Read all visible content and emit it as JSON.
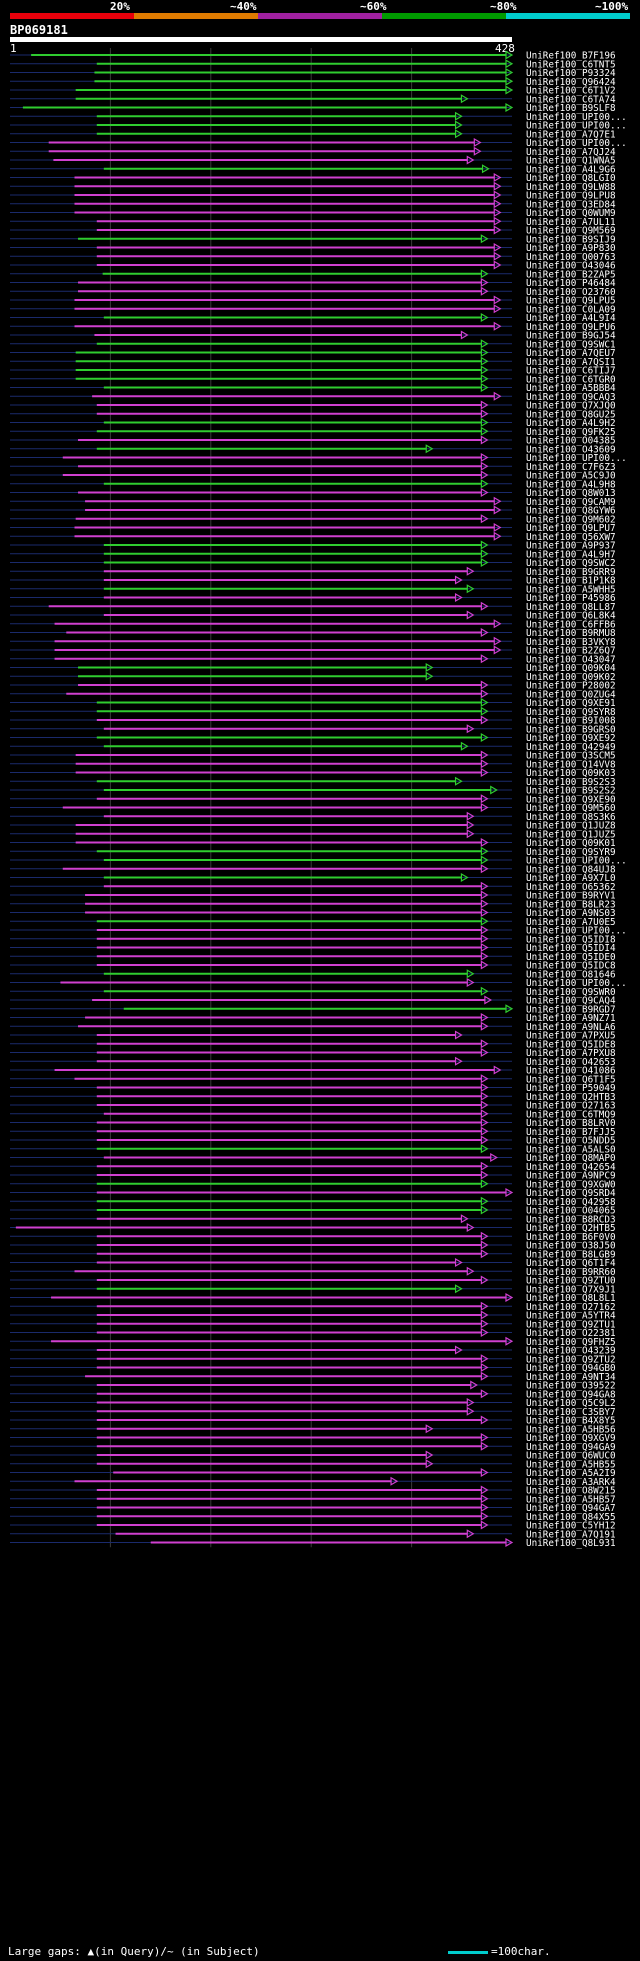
{
  "scale": {
    "labels": [
      "20%",
      "~40%",
      "~60%",
      "~80%",
      "~100%"
    ],
    "colors": [
      "#e8000b",
      "#e07b00",
      "#a020a0",
      "#009a00",
      "#00cccc"
    ]
  },
  "query": {
    "id": "BP069181",
    "start": "1",
    "end": "428",
    "length": 428
  },
  "colors": {
    "green": "#2fcc2f",
    "magenta": "#d040d0",
    "bg_line": "#1a2a6c",
    "gridline": "#3a3a3a"
  },
  "hits": [
    {
      "id": "UniRef100_B7F196",
      "c": "g",
      "s": 18,
      "e": 428,
      "f": 0
    },
    {
      "id": "UniRef100_C6TNT5",
      "c": "g",
      "s": 74,
      "e": 428,
      "f": 0
    },
    {
      "id": "UniRef100_P93324",
      "c": "g",
      "s": 72,
      "e": 428,
      "f": 0
    },
    {
      "id": "UniRef100_Q96424",
      "c": "g",
      "s": 72,
      "e": 428,
      "f": 0
    },
    {
      "id": "UniRef100_C6T1V2",
      "c": "g",
      "s": 56,
      "e": 428,
      "f": 0
    },
    {
      "id": "UniRef100_C6TA74",
      "c": "g",
      "s": 56,
      "e": 390,
      "f": 0
    },
    {
      "id": "UniRef100_B9SLF8",
      "c": "g",
      "s": 11,
      "e": 428,
      "f": 0
    },
    {
      "id": "UniRef100_UPI00...",
      "c": "g",
      "s": 74,
      "e": 385,
      "f": 0
    },
    {
      "id": "UniRef100_UPI00...",
      "c": "g",
      "s": 74,
      "e": 385,
      "f": 0
    },
    {
      "id": "UniRef100_A7Q7E1",
      "c": "g",
      "s": 74,
      "e": 385,
      "f": 0
    },
    {
      "id": "UniRef100_UPI00...",
      "c": "m",
      "s": 33,
      "e": 401,
      "f": 0
    },
    {
      "id": "UniRef100_A7QJ24",
      "c": "m",
      "s": 33,
      "e": 401,
      "f": 0
    },
    {
      "id": "UniRef100_Q1WNA5",
      "c": "m",
      "s": 37,
      "e": 395,
      "f": 0
    },
    {
      "id": "UniRef100_A4L9G6",
      "c": "g",
      "s": 80,
      "e": 408,
      "f": 0
    },
    {
      "id": "UniRef100_Q8LGI0",
      "c": "m",
      "s": 55,
      "e": 418,
      "f": 0
    },
    {
      "id": "UniRef100_Q9LW88",
      "c": "m",
      "s": 55,
      "e": 418,
      "f": 0
    },
    {
      "id": "UniRef100_Q9LPU8",
      "c": "m",
      "s": 55,
      "e": 418,
      "f": 0
    },
    {
      "id": "UniRef100_Q3ED84",
      "c": "m",
      "s": 55,
      "e": 418,
      "f": 0
    },
    {
      "id": "UniRef100_Q0WUM9",
      "c": "m",
      "s": 55,
      "e": 418,
      "f": 0
    },
    {
      "id": "UniRef100_A7UL11",
      "c": "m",
      "s": 74,
      "e": 418,
      "f": 0
    },
    {
      "id": "UniRef100_Q9M569",
      "c": "m",
      "s": 74,
      "e": 418,
      "f": 0
    },
    {
      "id": "UniRef100_B9SIJ9",
      "c": "g",
      "s": 58,
      "e": 407,
      "f": 0
    },
    {
      "id": "UniRef100_A9P830",
      "c": "m",
      "s": 74,
      "e": 418,
      "f": 0
    },
    {
      "id": "UniRef100_Q00763",
      "c": "m",
      "s": 74,
      "e": 418,
      "f": 0
    },
    {
      "id": "UniRef100_O43046",
      "c": "m",
      "s": 74,
      "e": 418,
      "f": 0
    },
    {
      "id": "UniRef100_B2ZAP5",
      "c": "g",
      "s": 79,
      "e": 407,
      "f": 0
    },
    {
      "id": "UniRef100_P46484",
      "c": "m",
      "s": 58,
      "e": 407,
      "f": 0
    },
    {
      "id": "UniRef100_O23760",
      "c": "m",
      "s": 58,
      "e": 407,
      "f": 0
    },
    {
      "id": "UniRef100_Q9LPU5",
      "c": "m",
      "s": 55,
      "e": 418,
      "f": 0
    },
    {
      "id": "UniRef100_C0LA09",
      "c": "m",
      "s": 55,
      "e": 418,
      "f": 0
    },
    {
      "id": "UniRef100_A4L9I4",
      "c": "g",
      "s": 80,
      "e": 407,
      "f": 0
    },
    {
      "id": "UniRef100_Q9LPU6",
      "c": "m",
      "s": 55,
      "e": 418,
      "f": 0
    },
    {
      "id": "UniRef100_B9GJ54",
      "c": "m",
      "s": 72,
      "e": 390,
      "f": 0
    },
    {
      "id": "UniRef100_Q9SWC1",
      "c": "g",
      "s": 74,
      "e": 407,
      "f": 0
    },
    {
      "id": "UniRef100_A7QEU7",
      "c": "g",
      "s": 56,
      "e": 407,
      "f": 0
    },
    {
      "id": "UniRef100_A7QSI1",
      "c": "g",
      "s": 56,
      "e": 407,
      "f": 0
    },
    {
      "id": "UniRef100_C6TIJ7",
      "c": "g",
      "s": 56,
      "e": 407,
      "f": 0
    },
    {
      "id": "UniRef100_C6TGR0",
      "c": "g",
      "s": 56,
      "e": 407,
      "f": 0
    },
    {
      "id": "UniRef100_A5BBB4",
      "c": "g",
      "s": 80,
      "e": 407,
      "f": 0
    },
    {
      "id": "UniRef100_Q9CAQ3",
      "c": "m",
      "s": 70,
      "e": 418,
      "f": 0
    },
    {
      "id": "UniRef100_Q7XJQ0",
      "c": "m",
      "s": 74,
      "e": 407,
      "f": 0
    },
    {
      "id": "UniRef100_Q8GU25",
      "c": "m",
      "s": 74,
      "e": 407,
      "f": 0
    },
    {
      "id": "UniRef100_A4L9H2",
      "c": "g",
      "s": 80,
      "e": 407,
      "f": 0
    },
    {
      "id": "UniRef100_Q9FK25",
      "c": "g",
      "s": 74,
      "e": 407,
      "f": 0
    },
    {
      "id": "UniRef100_O04385",
      "c": "m",
      "s": 58,
      "e": 407,
      "f": 0
    },
    {
      "id": "UniRef100_O43609",
      "c": "g",
      "s": 74,
      "e": 360,
      "f": 0
    },
    {
      "id": "UniRef100_UPI00...",
      "c": "m",
      "s": 45,
      "e": 407,
      "f": 0
    },
    {
      "id": "UniRef100_C7F6Z3",
      "c": "m",
      "s": 58,
      "e": 407,
      "f": 0
    },
    {
      "id": "UniRef100_A5C9J0",
      "c": "m",
      "s": 45,
      "e": 407,
      "f": 0
    },
    {
      "id": "UniRef100_A4L9H8",
      "c": "g",
      "s": 80,
      "e": 407,
      "f": 0
    },
    {
      "id": "UniRef100_Q8W013",
      "c": "m",
      "s": 58,
      "e": 407,
      "f": 0
    },
    {
      "id": "UniRef100_Q9CAM9",
      "c": "m",
      "s": 64,
      "e": 418,
      "f": 0
    },
    {
      "id": "UniRef100_Q8GYW6",
      "c": "m",
      "s": 64,
      "e": 418,
      "f": 0
    },
    {
      "id": "UniRef100_Q9M602",
      "c": "m",
      "s": 56,
      "e": 407,
      "f": 0
    },
    {
      "id": "UniRef100_Q9LPU7",
      "c": "m",
      "s": 55,
      "e": 418,
      "f": 0
    },
    {
      "id": "UniRef100_Q56XW7",
      "c": "m",
      "s": 55,
      "e": 418,
      "f": 0
    },
    {
      "id": "UniRef100_A9P937",
      "c": "g",
      "s": 80,
      "e": 407,
      "f": 0
    },
    {
      "id": "UniRef100_A4L9H7",
      "c": "g",
      "s": 80,
      "e": 407,
      "f": 0
    },
    {
      "id": "UniRef100_Q9SWC2",
      "c": "g",
      "s": 80,
      "e": 407,
      "f": 0
    },
    {
      "id": "UniRef100_B9GRR9",
      "c": "m",
      "s": 80,
      "e": 395,
      "f": 0
    },
    {
      "id": "UniRef100_B1P1K8",
      "c": "m",
      "s": 80,
      "e": 385,
      "f": 0
    },
    {
      "id": "UniRef100_A5WHH5",
      "c": "g",
      "s": 80,
      "e": 395,
      "f": 0
    },
    {
      "id": "UniRef100_P45986",
      "c": "m",
      "s": 80,
      "e": 385,
      "f": 0
    },
    {
      "id": "UniRef100_Q8LL87",
      "c": "m",
      "s": 33,
      "e": 407,
      "f": 0
    },
    {
      "id": "UniRef100_Q6L8K4",
      "c": "m",
      "s": 80,
      "e": 395,
      "f": 0
    },
    {
      "id": "UniRef100_C6FFB6",
      "c": "m",
      "s": 38,
      "e": 418,
      "f": 0
    },
    {
      "id": "UniRef100_B9RMU8",
      "c": "m",
      "s": 48,
      "e": 407,
      "f": 0
    },
    {
      "id": "UniRef100_B3VKY8",
      "c": "m",
      "s": 38,
      "e": 418,
      "f": 0
    },
    {
      "id": "UniRef100_B2Z6Q7",
      "c": "m",
      "s": 38,
      "e": 418,
      "f": 0
    },
    {
      "id": "UniRef100_O43047",
      "c": "m",
      "s": 38,
      "e": 407,
      "f": 0
    },
    {
      "id": "UniRef100_Q09K04",
      "c": "g",
      "s": 58,
      "e": 360,
      "f": 0
    },
    {
      "id": "UniRef100_Q09K02",
      "c": "g",
      "s": 58,
      "e": 360,
      "f": 0
    },
    {
      "id": "UniRef100_P28002",
      "c": "m",
      "s": 58,
      "e": 407,
      "f": 0
    },
    {
      "id": "UniRef100_Q0ZUG4",
      "c": "m",
      "s": 48,
      "e": 407,
      "f": 0
    },
    {
      "id": "UniRef100_Q9XE91",
      "c": "g",
      "s": 74,
      "e": 407,
      "f": 0
    },
    {
      "id": "UniRef100_Q9SYR8",
      "c": "g",
      "s": 74,
      "e": 407,
      "f": 0
    },
    {
      "id": "UniRef100_B9I008",
      "c": "m",
      "s": 74,
      "e": 407,
      "f": 0
    },
    {
      "id": "UniRef100_B9GRS0",
      "c": "m",
      "s": 80,
      "e": 395,
      "f": 0
    },
    {
      "id": "UniRef100_Q9XE92",
      "c": "g",
      "s": 74,
      "e": 407,
      "f": 0
    },
    {
      "id": "UniRef100_Q42949",
      "c": "g",
      "s": 80,
      "e": 390,
      "f": 0
    },
    {
      "id": "UniRef100_Q3SCM5",
      "c": "m",
      "s": 56,
      "e": 407,
      "f": 0
    },
    {
      "id": "UniRef100_Q14VV8",
      "c": "m",
      "s": 56,
      "e": 407,
      "f": 0
    },
    {
      "id": "UniRef100_Q09K03",
      "c": "m",
      "s": 56,
      "e": 407,
      "f": 0
    },
    {
      "id": "UniRef100_B9S2S3",
      "c": "g",
      "s": 74,
      "e": 385,
      "f": 0
    },
    {
      "id": "UniRef100_B9S2S2",
      "c": "g",
      "s": 80,
      "e": 415,
      "f": 0
    },
    {
      "id": "UniRef100_Q9XE90",
      "c": "m",
      "s": 74,
      "e": 407,
      "f": 0
    },
    {
      "id": "UniRef100_Q9M560",
      "c": "m",
      "s": 45,
      "e": 407,
      "f": 0
    },
    {
      "id": "UniRef100_Q8S3K6",
      "c": "m",
      "s": 80,
      "e": 395,
      "f": 0
    },
    {
      "id": "UniRef100_Q1JUZ8",
      "c": "m",
      "s": 56,
      "e": 395,
      "f": 0
    },
    {
      "id": "UniRef100_Q1JUZ5",
      "c": "m",
      "s": 56,
      "e": 395,
      "f": 0
    },
    {
      "id": "UniRef100_Q09K01",
      "c": "m",
      "s": 56,
      "e": 407,
      "f": 0
    },
    {
      "id": "UniRef100_Q9SYR9",
      "c": "g",
      "s": 74,
      "e": 407,
      "f": 0
    },
    {
      "id": "UniRef100_UPI00...",
      "c": "g",
      "s": 80,
      "e": 407,
      "f": 0
    },
    {
      "id": "UniRef100_Q84UJ8",
      "c": "m",
      "s": 45,
      "e": 407,
      "f": 0
    },
    {
      "id": "UniRef100_A9X7L0",
      "c": "g",
      "s": 80,
      "e": 390,
      "f": 0
    },
    {
      "id": "UniRef100_O65362",
      "c": "m",
      "s": 80,
      "e": 407,
      "f": 0
    },
    {
      "id": "UniRef100_B9RYV1",
      "c": "m",
      "s": 64,
      "e": 407,
      "f": 0
    },
    {
      "id": "UniRef100_B8LR23",
      "c": "m",
      "s": 64,
      "e": 407,
      "f": 0
    },
    {
      "id": "UniRef100_A9NS03",
      "c": "m",
      "s": 64,
      "e": 407,
      "f": 0
    },
    {
      "id": "UniRef100_A7U0E5",
      "c": "g",
      "s": 74,
      "e": 407,
      "f": 0
    },
    {
      "id": "UniRef100_UPI00...",
      "c": "m",
      "s": 74,
      "e": 407,
      "f": 0
    },
    {
      "id": "UniRef100_Q5IDI8",
      "c": "m",
      "s": 74,
      "e": 407,
      "f": 0
    },
    {
      "id": "UniRef100_Q5IDI4",
      "c": "m",
      "s": 74,
      "e": 407,
      "f": 0
    },
    {
      "id": "UniRef100_Q5IDE0",
      "c": "m",
      "s": 74,
      "e": 407,
      "f": 0
    },
    {
      "id": "UniRef100_Q5IDC8",
      "c": "m",
      "s": 74,
      "e": 407,
      "f": 0
    },
    {
      "id": "UniRef100_O81646",
      "c": "g",
      "s": 80,
      "e": 395,
      "f": 0
    },
    {
      "id": "UniRef100_UPI00...",
      "c": "m",
      "s": 43,
      "e": 395,
      "f": 0
    },
    {
      "id": "UniRef100_Q9SWR0",
      "c": "g",
      "s": 80,
      "e": 407,
      "f": 0
    },
    {
      "id": "UniRef100_Q9CAQ4",
      "c": "m",
      "s": 70,
      "e": 410,
      "f": 0
    },
    {
      "id": "UniRef100_B9RGD7",
      "c": "g",
      "s": 97,
      "e": 430,
      "f": 0
    },
    {
      "id": "UniRef100_A9NZ71",
      "c": "m",
      "s": 64,
      "e": 407,
      "f": 0
    },
    {
      "id": "UniRef100_A9NLA6",
      "c": "m",
      "s": 58,
      "e": 407,
      "f": 0
    },
    {
      "id": "UniRef100_A7PXU5",
      "c": "m",
      "s": 74,
      "e": 385,
      "f": 0
    },
    {
      "id": "UniRef100_Q5IDE8",
      "c": "m",
      "s": 74,
      "e": 407,
      "f": 0
    },
    {
      "id": "UniRef100_A7PXU8",
      "c": "m",
      "s": 74,
      "e": 407,
      "f": 0
    },
    {
      "id": "UniRef100_O42653",
      "c": "m",
      "s": 74,
      "e": 385,
      "f": 0
    },
    {
      "id": "UniRef100_O41086",
      "c": "m",
      "s": 38,
      "e": 418,
      "f": 0
    },
    {
      "id": "UniRef100_Q6T1F5",
      "c": "m",
      "s": 55,
      "e": 407,
      "f": 0
    },
    {
      "id": "UniRef100_P59049",
      "c": "m",
      "s": 74,
      "e": 407,
      "f": 0
    },
    {
      "id": "UniRef100_Q2HTB3",
      "c": "m",
      "s": 74,
      "e": 407,
      "f": 0
    },
    {
      "id": "UniRef100_O27163",
      "c": "m",
      "s": 74,
      "e": 407,
      "f": 0
    },
    {
      "id": "UniRef100_C6TMQ9",
      "c": "m",
      "s": 80,
      "e": 407,
      "f": 0
    },
    {
      "id": "UniRef100_B8LRV0",
      "c": "m",
      "s": 74,
      "e": 407,
      "f": 0
    },
    {
      "id": "UniRef100_B7FJJ5",
      "c": "m",
      "s": 74,
      "e": 407,
      "f": 0
    },
    {
      "id": "UniRef100_O5NDD5",
      "c": "m",
      "s": 74,
      "e": 407,
      "f": 0
    },
    {
      "id": "UniRef100_A5ALS0",
      "c": "g",
      "s": 74,
      "e": 407,
      "f": 0
    },
    {
      "id": "UniRef100_Q8MAP0",
      "c": "m",
      "s": 80,
      "e": 415,
      "f": 0
    },
    {
      "id": "UniRef100_Q42654",
      "c": "m",
      "s": 74,
      "e": 407,
      "f": 0
    },
    {
      "id": "UniRef100_A9NPC9",
      "c": "m",
      "s": 74,
      "e": 407,
      "f": 0
    },
    {
      "id": "UniRef100_Q9XGW0",
      "c": "g",
      "s": 74,
      "e": 407,
      "f": 0
    },
    {
      "id": "UniRef100_Q9SRD4",
      "c": "m",
      "s": 74,
      "e": 428,
      "f": 0
    },
    {
      "id": "UniRef100_Q42958",
      "c": "g",
      "s": 74,
      "e": 407,
      "f": 0
    },
    {
      "id": "UniRef100_O04065",
      "c": "g",
      "s": 74,
      "e": 407,
      "f": 0
    },
    {
      "id": "UniRef100_B8RCD3",
      "c": "m",
      "s": 74,
      "e": 390,
      "f": 0
    },
    {
      "id": "UniRef100_Q2HTB5",
      "c": "m",
      "s": 5,
      "e": 395,
      "f": 0
    },
    {
      "id": "UniRef100_B6F0V0",
      "c": "m",
      "s": 74,
      "e": 407,
      "f": 0
    },
    {
      "id": "UniRef100_O38J50",
      "c": "m",
      "s": 74,
      "e": 407,
      "f": 0
    },
    {
      "id": "UniRef100_B8LGB9",
      "c": "m",
      "s": 74,
      "e": 407,
      "f": 0
    },
    {
      "id": "UniRef100_Q6T1F4",
      "c": "m",
      "s": 74,
      "e": 385,
      "f": 0
    },
    {
      "id": "UniRef100_B9RR60",
      "c": "m",
      "s": 55,
      "e": 395,
      "f": 0
    },
    {
      "id": "UniRef100_Q9ZTU0",
      "c": "m",
      "s": 74,
      "e": 407,
      "f": 0
    },
    {
      "id": "UniRef100_Q7X9J1",
      "c": "g",
      "s": 74,
      "e": 385,
      "f": 0
    },
    {
      "id": "UniRef100_Q8L8L1",
      "c": "m",
      "s": 35,
      "e": 428,
      "f": 0
    },
    {
      "id": "UniRef100_O27162",
      "c": "m",
      "s": 74,
      "e": 407,
      "f": 0
    },
    {
      "id": "UniRef100_A5YTR4",
      "c": "m",
      "s": 74,
      "e": 407,
      "f": 0
    },
    {
      "id": "UniRef100_Q9ZTU1",
      "c": "m",
      "s": 74,
      "e": 407,
      "f": 0
    },
    {
      "id": "UniRef100_O22381",
      "c": "m",
      "s": 74,
      "e": 407,
      "f": 0
    },
    {
      "id": "UniRef100_Q9FHZ5",
      "c": "m",
      "s": 35,
      "e": 428,
      "f": 0
    },
    {
      "id": "UniRef100_O43239",
      "c": "m",
      "s": 74,
      "e": 385,
      "f": 0
    },
    {
      "id": "UniRef100_Q9ZTU2",
      "c": "m",
      "s": 74,
      "e": 407,
      "f": 0
    },
    {
      "id": "UniRef100_Q94GB0",
      "c": "m",
      "s": 74,
      "e": 407,
      "f": 0
    },
    {
      "id": "UniRef100_A9NT34",
      "c": "m",
      "s": 64,
      "e": 407,
      "f": 0
    },
    {
      "id": "UniRef100_O39522",
      "c": "m",
      "s": 74,
      "e": 398,
      "f": 0
    },
    {
      "id": "UniRef100_Q94GA8",
      "c": "m",
      "s": 74,
      "e": 407,
      "f": 0
    },
    {
      "id": "UniRef100_Q5C9L2",
      "c": "m",
      "s": 74,
      "e": 395,
      "f": 0
    },
    {
      "id": "UniRef100_C3SBY7",
      "c": "m",
      "s": 74,
      "e": 395,
      "f": 0
    },
    {
      "id": "UniRef100_B4X8Y5",
      "c": "m",
      "s": 74,
      "e": 407,
      "f": 0
    },
    {
      "id": "UniRef100_A5HB56",
      "c": "m",
      "s": 74,
      "e": 360,
      "f": 0
    },
    {
      "id": "UniRef100_Q9XGV9",
      "c": "m",
      "s": 74,
      "e": 407,
      "f": 0
    },
    {
      "id": "UniRef100_Q94GA9",
      "c": "m",
      "s": 74,
      "e": 407,
      "f": 0
    },
    {
      "id": "UniRef100_Q6WUC0",
      "c": "m",
      "s": 74,
      "e": 360,
      "f": 0
    },
    {
      "id": "UniRef100_A5HB55",
      "c": "m",
      "s": 74,
      "e": 360,
      "f": 0
    },
    {
      "id": "UniRef100_A5A2I9",
      "c": "m",
      "s": 88,
      "e": 407,
      "f": 0
    },
    {
      "id": "UniRef100_A3ARK4",
      "c": "m",
      "s": 55,
      "e": 330,
      "f": 0
    },
    {
      "id": "UniRef100_O8W215",
      "c": "m",
      "s": 74,
      "e": 407,
      "f": 0
    },
    {
      "id": "UniRef100_A5HB57",
      "c": "m",
      "s": 74,
      "e": 407,
      "f": 0
    },
    {
      "id": "UniRef100_Q94GA7",
      "c": "m",
      "s": 74,
      "e": 407,
      "f": 0
    },
    {
      "id": "UniRef100_Q84X55",
      "c": "m",
      "s": 74,
      "e": 407,
      "f": 0
    },
    {
      "id": "UniRef100_C5YH12",
      "c": "m",
      "s": 74,
      "e": 407,
      "f": 0
    },
    {
      "id": "UniRef100_A7Q191",
      "c": "m",
      "s": 90,
      "e": 395,
      "f": 0
    },
    {
      "id": "UniRef100_Q8L931",
      "c": "m",
      "s": 120,
      "e": 428,
      "f": 0
    }
  ],
  "legend": {
    "gaps_text": "Large gaps: ▲(in Query)/~ (in Subject)",
    "scale_text": "=100char."
  }
}
